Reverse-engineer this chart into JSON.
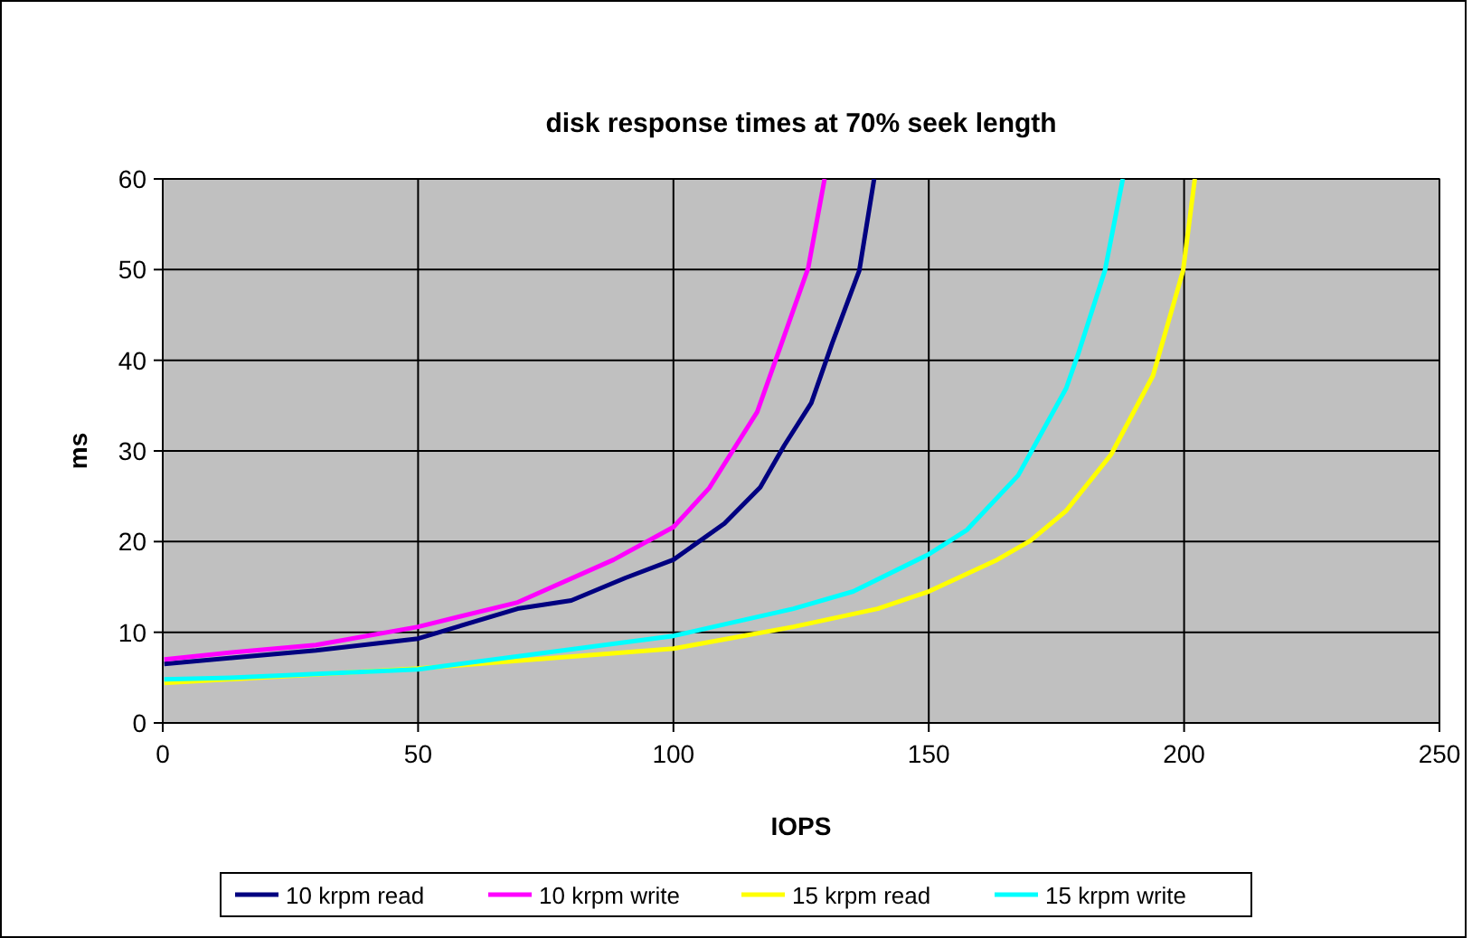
{
  "chart_data": {
    "type": "line",
    "title": "disk response times at 70% seek length",
    "xlabel": "IOPS",
    "ylabel": "ms",
    "xlim": [
      0,
      250
    ],
    "ylim": [
      0,
      60
    ],
    "xticks": [
      0,
      50,
      100,
      150,
      200,
      250
    ],
    "yticks": [
      0,
      10,
      20,
      30,
      40,
      50,
      60
    ],
    "grid": true,
    "legend": "bottom",
    "marker": "none",
    "line_style": "solid",
    "series": [
      {
        "name": "10 krpm read",
        "color": "#000080",
        "x": [
          0.3,
          14,
          30,
          50,
          69.5,
          80,
          90.6,
          100,
          110,
          117,
          121.7,
          127,
          131.1,
          136.4,
          139.3
        ],
        "values": [
          6.5,
          7.2,
          8,
          9.3,
          12.6,
          13.5,
          16,
          18,
          22,
          26,
          30.6,
          35.3,
          41.9,
          49.9,
          60
        ]
      },
      {
        "name": "10 krpm write",
        "color": "#ff00ff",
        "x": [
          0.3,
          14,
          30,
          50,
          69.5,
          88.3,
          100,
          107,
          116.4,
          121.2,
          126.4,
          129.6
        ],
        "values": [
          7,
          7.8,
          8.6,
          10.6,
          13.3,
          18,
          21.6,
          25.9,
          34.3,
          41.9,
          50.2,
          60
        ]
      },
      {
        "name": "15 krpm read",
        "color": "#ffff00",
        "x": [
          0.3,
          50,
          100,
          123.5,
          140,
          150,
          163.4,
          169.9,
          176.9,
          185.7,
          193.9,
          199.8,
          202.1
        ],
        "values": [
          4.4,
          6,
          8.2,
          10.6,
          12.6,
          14.5,
          18,
          20.1,
          23.4,
          29.6,
          38.3,
          49.9,
          60
        ]
      },
      {
        "name": "15 krpm write",
        "color": "#00ffff",
        "x": [
          0.3,
          14.3,
          50,
          100,
          123.5,
          135.2,
          150,
          157.5,
          167.5,
          176.9,
          179.2,
          184.5,
          188
        ],
        "values": [
          4.8,
          5,
          5.9,
          9.6,
          12.6,
          14.5,
          18.6,
          21.3,
          27.3,
          36.9,
          40.6,
          49.9,
          60
        ]
      }
    ]
  }
}
